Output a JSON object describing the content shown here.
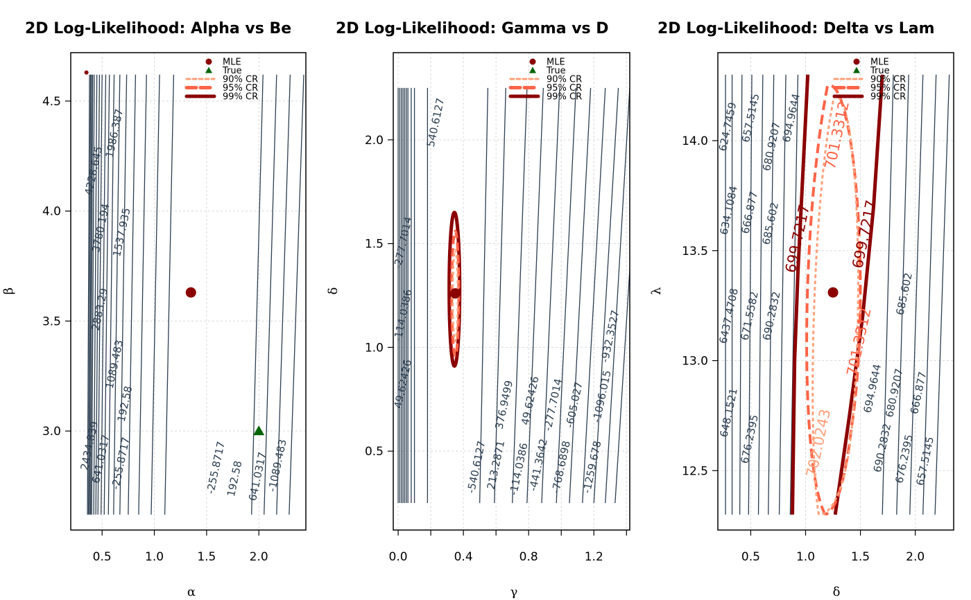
{
  "colors": {
    "contour": "#2c3e50",
    "mle": "#8b0000",
    "true": "#006400",
    "cr90": "#ffa07a",
    "cr95": "#ff6347",
    "cr99": "#8b0000",
    "grid": "#d9d9d9"
  },
  "chart_data": [
    {
      "type": "contour",
      "title": "2D Log-Likelihood: Alpha vs Be",
      "xlabel": "α",
      "ylabel": "β",
      "xlim": [
        0.2,
        2.45
      ],
      "ylim": [
        2.55,
        4.72
      ],
      "xticks": [
        0.5,
        1.0,
        1.5,
        2.0
      ],
      "xtick_labels": [
        "0.5",
        "1.0",
        "1.5",
        "2.0"
      ],
      "yticks": [
        3.0,
        3.5,
        4.0,
        4.5
      ],
      "ytick_labels": [
        "3.0",
        "3.5",
        "4.0",
        "4.5"
      ],
      "line_range": [
        2.62,
        4.62
      ],
      "contours": [
        {
          "x": 0.36,
          "s": 0.02
        },
        {
          "x": 0.37,
          "s": 0.02
        },
        {
          "x": 0.38,
          "s": 0.02
        },
        {
          "x": 0.39,
          "s": 0.02
        },
        {
          "x": 0.4,
          "s": 0.025
        },
        {
          "x": 0.42,
          "s": 0.03
        },
        {
          "x": 0.44,
          "s": 0.035
        },
        {
          "x": 0.46,
          "s": 0.04
        },
        {
          "x": 0.49,
          "s": 0.045
        },
        {
          "x": 0.52,
          "s": 0.05
        },
        {
          "x": 0.56,
          "s": 0.055
        },
        {
          "x": 0.61,
          "s": 0.06
        },
        {
          "x": 0.67,
          "s": 0.065
        },
        {
          "x": 0.75,
          "s": 0.07
        },
        {
          "x": 0.85,
          "s": 0.075
        },
        {
          "x": 0.97,
          "s": 0.08
        },
        {
          "x": 1.1,
          "s": 0.085
        },
        {
          "x": 1.93,
          "s": 0.11
        },
        {
          "x": 2.05,
          "s": 0.12
        },
        {
          "x": 2.17,
          "s": 0.13
        },
        {
          "x": 2.29,
          "s": 0.14
        }
      ],
      "contour_labels": [
        {
          "text": "4228.645",
          "x": 0.45,
          "y": 4.18
        },
        {
          "text": "1986.387",
          "x": 0.65,
          "y": 4.35
        },
        {
          "text": "3780.194",
          "x": 0.52,
          "y": 3.92
        },
        {
          "text": "1537.935",
          "x": 0.72,
          "y": 3.9
        },
        {
          "text": "2883.29",
          "x": 0.51,
          "y": 3.55
        },
        {
          "text": "1089.483",
          "x": 0.65,
          "y": 3.3
        },
        {
          "text": "192.58",
          "x": 0.75,
          "y": 3.12
        },
        {
          "text": "2434.839",
          "x": 0.41,
          "y": 2.93
        },
        {
          "text": "641.0317",
          "x": 0.52,
          "y": 2.87
        },
        {
          "text": "-255.8717",
          "x": 0.71,
          "y": 2.85
        },
        {
          "text": "-255.8717",
          "x": 1.62,
          "y": 2.83
        },
        {
          "text": "192.58",
          "x": 1.8,
          "y": 2.78
        },
        {
          "text": "641.0317",
          "x": 2.02,
          "y": 2.79
        },
        {
          "text": "-1089.483",
          "x": 2.21,
          "y": 2.84
        }
      ],
      "mle": {
        "x": 1.35,
        "y": 3.63
      },
      "true": {
        "x": 2.0,
        "y": 3.0
      },
      "extra_points": [
        {
          "x": 0.35,
          "y": 4.63
        }
      ],
      "legend": [
        "MLE",
        "True",
        "90% CR",
        "95% CR",
        "99% CR"
      ]
    },
    {
      "type": "contour",
      "title": "2D Log-Likelihood: Gamma vs D",
      "xlabel": "γ",
      "ylabel": "δ",
      "xlim": [
        -0.03,
        1.42
      ],
      "ylim": [
        0.12,
        2.42
      ],
      "xticks": [
        0.0,
        0.2,
        0.4,
        0.6,
        0.8,
        1.0,
        1.2,
        1.4
      ],
      "xtick_labels": [
        "0.0",
        "",
        "0.4",
        "",
        "0.8",
        "",
        "1.2",
        ""
      ],
      "yticks": [
        0.5,
        1.0,
        1.5,
        2.0
      ],
      "ytick_labels": [
        "0.5",
        "1.0",
        "1.5",
        "2.0"
      ],
      "line_range": [
        0.25,
        2.25
      ],
      "contours": [
        {
          "x": 0.0,
          "s": 0.0
        },
        {
          "x": 0.01,
          "s": 0.0
        },
        {
          "x": 0.02,
          "s": 0.0
        },
        {
          "x": 0.03,
          "s": 0.0
        },
        {
          "x": 0.04,
          "s": 0.0
        },
        {
          "x": 0.05,
          "s": 0.0
        },
        {
          "x": 0.06,
          "s": 0.0
        },
        {
          "x": 0.08,
          "s": 0.0
        },
        {
          "x": 0.1,
          "s": 0.0
        },
        {
          "x": 0.18,
          "s": 0.0
        },
        {
          "x": 0.5,
          "s": 0.05
        },
        {
          "x": 0.59,
          "s": 0.07
        },
        {
          "x": 0.7,
          "s": 0.09
        },
        {
          "x": 0.79,
          "s": 0.1
        },
        {
          "x": 0.88,
          "s": 0.11
        },
        {
          "x": 0.97,
          "s": 0.12
        },
        {
          "x": 1.05,
          "s": 0.13
        },
        {
          "x": 1.13,
          "s": 0.14
        },
        {
          "x": 1.2,
          "s": 0.15
        },
        {
          "x": 1.27,
          "s": 0.15
        },
        {
          "x": 1.33,
          "s": 0.16
        }
      ],
      "contour_labels": [
        {
          "text": "540.6127",
          "x": 0.25,
          "y": 2.08
        },
        {
          "text": "49.62426",
          "x": 0.05,
          "y": 0.82
        },
        {
          "text": "-114.0386",
          "x": 0.05,
          "y": 1.15
        },
        {
          "text": "-277.7014",
          "x": 0.05,
          "y": 1.5
        },
        {
          "text": "-540.6127",
          "x": 0.5,
          "y": 0.42
        },
        {
          "text": "213.2871",
          "x": 0.62,
          "y": 0.43
        },
        {
          "text": "376.9499",
          "x": 0.67,
          "y": 0.72
        },
        {
          "text": "-114.0386",
          "x": 0.76,
          "y": 0.41
        },
        {
          "text": "49.62426",
          "x": 0.83,
          "y": 0.74
        },
        {
          "text": "-441.3642",
          "x": 0.88,
          "y": 0.43
        },
        {
          "text": "-277.7014",
          "x": 0.97,
          "y": 0.72
        },
        {
          "text": "-768.6898",
          "x": 1.02,
          "y": 0.42
        },
        {
          "text": "-605.027",
          "x": 1.1,
          "y": 0.72
        },
        {
          "text": "-1259.678",
          "x": 1.21,
          "y": 0.42
        },
        {
          "text": "-1096.015",
          "x": 1.27,
          "y": 0.76
        },
        {
          "text": "-932.3527",
          "x": 1.32,
          "y": 1.05
        }
      ],
      "mle": {
        "x": 0.35,
        "y": 1.26
      },
      "regions": [
        {
          "level": "99% CR",
          "cx": 0.345,
          "cy": 1.28,
          "rx": 0.032,
          "ry": 0.37
        },
        {
          "level": "95% CR",
          "cx": 0.35,
          "cy": 1.26,
          "rx": 0.022,
          "ry": 0.3
        },
        {
          "level": "90% CR",
          "cx": 0.35,
          "cy": 1.25,
          "rx": 0.016,
          "ry": 0.22
        }
      ],
      "legend": [
        "MLE",
        "True",
        "90% CR",
        "95% CR",
        "99% CR"
      ]
    },
    {
      "type": "contour",
      "title": "2D Log-Likelihood: Delta vs Lam",
      "xlabel": "δ",
      "ylabel": "λ",
      "xlim": [
        0.2,
        2.35
      ],
      "ylim": [
        12.23,
        14.4
      ],
      "xticks": [
        0.5,
        1.0,
        1.5,
        2.0
      ],
      "xtick_labels": [
        "0.5",
        "1.0",
        "1.5",
        "2.0"
      ],
      "yticks": [
        12.5,
        13.0,
        13.5,
        14.0
      ],
      "ytick_labels": [
        "12.5",
        "13.0",
        "13.5",
        "14.0"
      ],
      "line_range": [
        12.3,
        14.3
      ],
      "contours": [
        {
          "x": 0.27,
          "s": 0.0
        },
        {
          "x": 0.33,
          "s": 0.0
        },
        {
          "x": 0.4,
          "s": 0.02
        },
        {
          "x": 0.48,
          "s": 0.03
        },
        {
          "x": 0.57,
          "s": 0.04
        },
        {
          "x": 0.66,
          "s": 0.05
        },
        {
          "x": 0.76,
          "s": 0.06
        },
        {
          "x": 0.86,
          "s": 0.07
        },
        {
          "x": 1.7,
          "s": 0.1
        },
        {
          "x": 1.83,
          "s": 0.11
        },
        {
          "x": 1.95,
          "s": 0.12
        },
        {
          "x": 2.07,
          "s": 0.12
        },
        {
          "x": 2.18,
          "s": 0.13
        }
      ],
      "contour_labels": [
        {
          "text": "624.7459",
          "x": 0.32,
          "y": 14.06
        },
        {
          "text": "657.5145",
          "x": 0.53,
          "y": 14.1
        },
        {
          "text": "680.9207",
          "x": 0.72,
          "y": 13.97
        },
        {
          "text": "694.9644",
          "x": 0.9,
          "y": 14.1
        },
        {
          "text": "634.1084",
          "x": 0.33,
          "y": 13.68
        },
        {
          "text": "666.877",
          "x": 0.52,
          "y": 13.67
        },
        {
          "text": "685.602",
          "x": 0.71,
          "y": 13.62
        },
        {
          "text": "6437.4708",
          "x": 0.33,
          "y": 13.2
        },
        {
          "text": "671.5582",
          "x": 0.52,
          "y": 13.2
        },
        {
          "text": "690.2832",
          "x": 0.72,
          "y": 13.2
        },
        {
          "text": "648.1521",
          "x": 0.33,
          "y": 12.76
        },
        {
          "text": "676.2395",
          "x": 0.52,
          "y": 12.64
        },
        {
          "text": "685.602",
          "x": 1.93,
          "y": 13.3
        },
        {
          "text": "694.9644",
          "x": 1.64,
          "y": 12.87
        },
        {
          "text": "680.9207",
          "x": 1.84,
          "y": 12.85
        },
        {
          "text": "666.877",
          "x": 2.06,
          "y": 12.85
        },
        {
          "text": "690.2832",
          "x": 1.73,
          "y": 12.6
        },
        {
          "text": "676.2395",
          "x": 1.93,
          "y": 12.55
        },
        {
          "text": "657.5145",
          "x": 2.12,
          "y": 12.54
        }
      ],
      "cr_labels": [
        {
          "text": "701.3312",
          "x": 1.33,
          "y": 14.02,
          "level": "95% CR"
        },
        {
          "text": "699.7217",
          "x": 1.58,
          "y": 13.57,
          "level": "99% CR"
        },
        {
          "text": "699.7217",
          "x": 0.97,
          "y": 13.55,
          "level": "99% CR"
        },
        {
          "text": "701.3312",
          "x": 1.53,
          "y": 13.08,
          "level": "95% CR"
        },
        {
          "text": "702.0243",
          "x": 1.16,
          "y": 12.62,
          "level": "90% CR"
        }
      ],
      "mle": {
        "x": 1.25,
        "y": 13.31
      },
      "legend": [
        "MLE",
        "True",
        "90% CR",
        "95% CR",
        "99% CR"
      ]
    }
  ]
}
